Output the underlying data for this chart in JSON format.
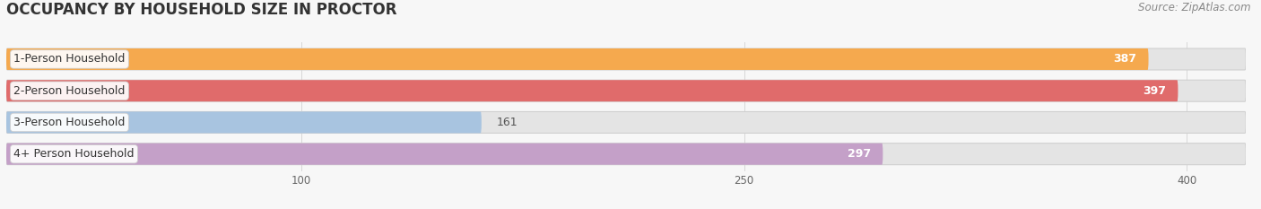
{
  "title": "OCCUPANCY BY HOUSEHOLD SIZE IN PROCTOR",
  "source": "Source: ZipAtlas.com",
  "categories": [
    "1-Person Household",
    "2-Person Household",
    "3-Person Household",
    "4+ Person Household"
  ],
  "values": [
    387,
    397,
    161,
    297
  ],
  "bar_colors": [
    "#F5A94E",
    "#E06B6B",
    "#A8C4E0",
    "#C4A0C8"
  ],
  "value_label_colors": [
    "white",
    "white",
    "#666666",
    "white"
  ],
  "xlim_max": 420,
  "xticks": [
    100,
    250,
    400
  ],
  "background_color": "#f7f7f7",
  "bar_bg_color": "#e4e4e4",
  "title_fontsize": 12,
  "source_fontsize": 8.5,
  "label_fontsize": 9,
  "value_fontsize": 9,
  "bar_height": 0.68,
  "figsize": [
    14.06,
    2.33
  ]
}
